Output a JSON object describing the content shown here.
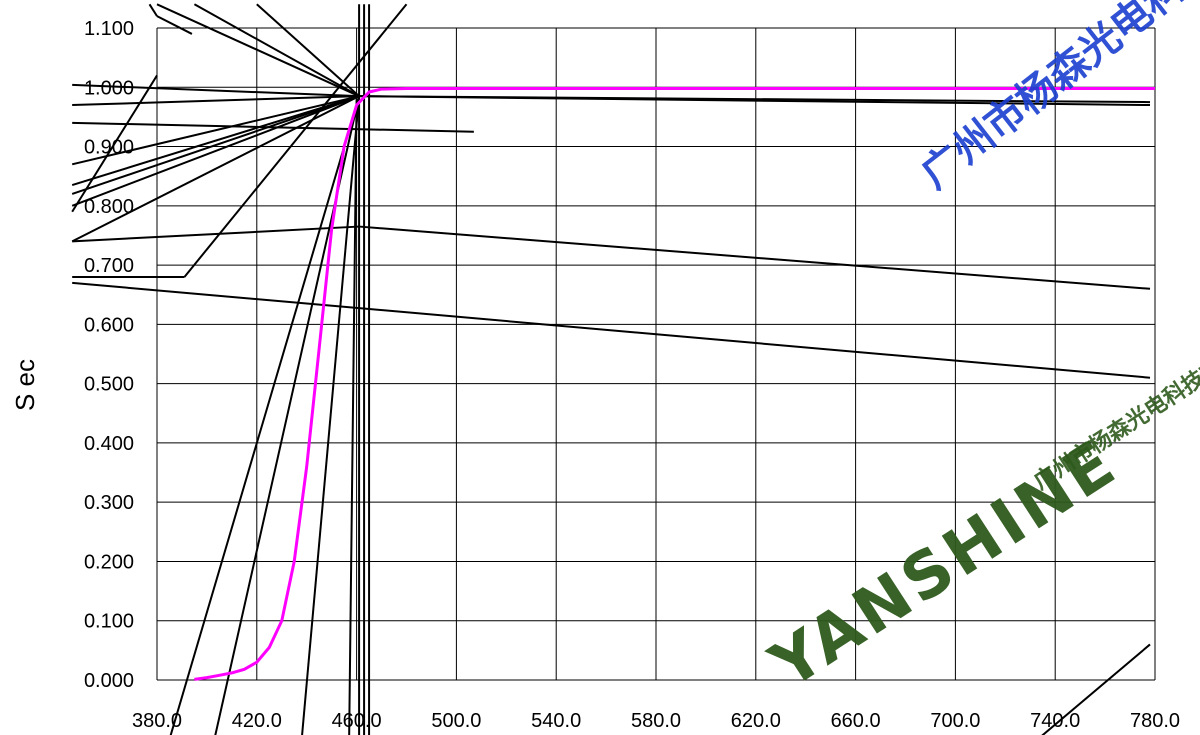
{
  "chart_data": {
    "type": "line",
    "title": "",
    "xlabel": "",
    "ylabel": "S ec",
    "xlim": [
      380.0,
      780.0
    ],
    "ylim": [
      0.0,
      1.1
    ],
    "x_ticks": [
      380.0,
      420.0,
      460.0,
      500.0,
      540.0,
      580.0,
      620.0,
      660.0,
      700.0,
      740.0,
      780.0
    ],
    "y_ticks": [
      0.0,
      0.1,
      0.2,
      0.3,
      0.4,
      0.5,
      0.6,
      0.7,
      0.8,
      0.9,
      1.0,
      1.1
    ],
    "x_tick_labels": [
      "380.0",
      "420.0",
      "460.0",
      "500.0",
      "540.0",
      "580.0",
      "620.0",
      "660.0",
      "700.0",
      "740.0",
      "780.0"
    ],
    "y_tick_labels": [
      "0.000",
      "0.100",
      "0.200",
      "0.300",
      "0.400",
      "0.500",
      "0.600",
      "0.700",
      "0.800",
      "0.900",
      "1.000",
      "1.100"
    ],
    "grid": true,
    "legend": "none",
    "series": [
      {
        "color": "#ff00ff",
        "x": [
          395,
          400,
          405,
          410,
          415,
          420,
          425,
          430,
          435,
          440,
          445,
          450,
          455,
          460,
          465,
          470,
          480,
          500,
          550,
          600,
          700,
          780
        ],
        "y": [
          0.001,
          0.004,
          0.008,
          0.012,
          0.018,
          0.03,
          0.055,
          0.1,
          0.2,
          0.36,
          0.56,
          0.76,
          0.9,
          0.97,
          0.992,
          0.997,
          0.998,
          0.998,
          0.998,
          0.998,
          0.998,
          0.998
        ]
      }
    ]
  },
  "watermark": {
    "brand": "YANSHINE",
    "cjk_line": "广州市杨森光电科技有限公司",
    "blue_line": "广州市杨森光电科技有限公司"
  },
  "colors": {
    "series": "#ff00ff",
    "grid": "#000000",
    "artifact_lines": "#000000",
    "watermark_green": "#2e5a1c",
    "watermark_blue": "#1a3fd0"
  }
}
